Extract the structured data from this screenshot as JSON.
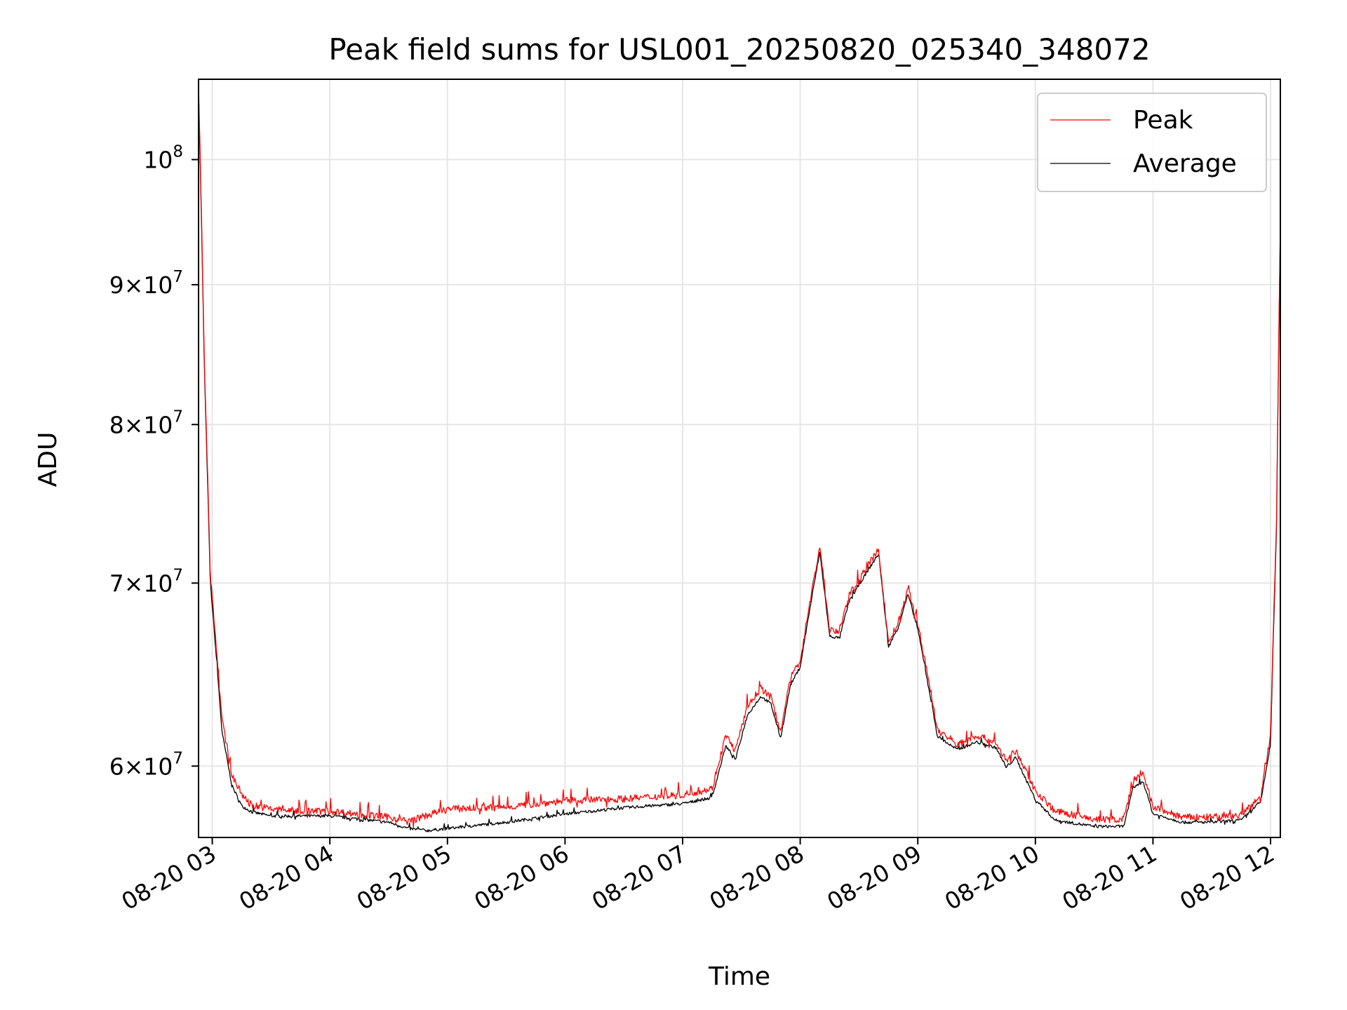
{
  "chart_data": {
    "type": "line",
    "title": "Peak field sums for USL001_20250820_025340_348072",
    "xlabel": "Time",
    "ylabel": "ADU",
    "y_scale": "log",
    "ylim": [
      56500000,
      107000000
    ],
    "x_range": [
      "08-20 02:53",
      "08-20 12:05"
    ],
    "x_ticks": [
      "08-20 03",
      "08-20 04",
      "08-20 05",
      "08-20 06",
      "08-20 07",
      "08-20 08",
      "08-20 09",
      "08-20 10",
      "08-20 11",
      "08-20 12"
    ],
    "y_ticks": [
      {
        "value": 60000000,
        "mantissa": "6",
        "exponent": "7"
      },
      {
        "value": 70000000,
        "mantissa": "7",
        "exponent": "7"
      },
      {
        "value": 80000000,
        "mantissa": "8",
        "exponent": "7"
      },
      {
        "value": 90000000,
        "mantissa": "9",
        "exponent": "7"
      },
      {
        "value": 100000000,
        "mantissa": "",
        "exponent": "8"
      }
    ],
    "grid": true,
    "legend_position": "top-right",
    "colors": {
      "peak": "#ff0000",
      "average": "#000000",
      "grid": "#e6e6e6"
    },
    "series": [
      {
        "name": "Peak",
        "key": "peak",
        "x": [
          "08-20 02:53",
          "08-20 02:56",
          "08-20 02:59",
          "08-20 03:05",
          "08-20 03:10",
          "08-20 03:15",
          "08-20 03:20",
          "08-20 03:30",
          "08-20 03:45",
          "08-20 04:00",
          "08-20 04:30",
          "08-20 04:40",
          "08-20 04:50",
          "08-20 05:00",
          "08-20 05:30",
          "08-20 06:00",
          "08-20 06:30",
          "08-20 07:00",
          "08-20 07:15",
          "08-20 07:22",
          "08-20 07:27",
          "08-20 07:33",
          "08-20 07:40",
          "08-20 07:45",
          "08-20 07:50",
          "08-20 07:55",
          "08-20 08:00",
          "08-20 08:05",
          "08-20 08:10",
          "08-20 08:15",
          "08-20 08:20",
          "08-20 08:25",
          "08-20 08:35",
          "08-20 08:40",
          "08-20 08:45",
          "08-20 08:50",
          "08-20 08:55",
          "08-20 09:00",
          "08-20 09:10",
          "08-20 09:20",
          "08-20 09:30",
          "08-20 09:40",
          "08-20 09:45",
          "08-20 09:50",
          "08-20 10:00",
          "08-20 10:10",
          "08-20 10:30",
          "08-20 10:45",
          "08-20 10:50",
          "08-20 10:55",
          "08-20 11:00",
          "08-20 11:15",
          "08-20 11:30",
          "08-20 11:45",
          "08-20 11:55",
          "08-20 12:00",
          "08-20 12:03",
          "08-20 12:05"
        ],
        "y": [
          106500000,
          84000000,
          70500000,
          62300000,
          59500000,
          58500000,
          58000000,
          57800000,
          57700000,
          57700000,
          57400000,
          57200000,
          57500000,
          57800000,
          57900000,
          58200000,
          58300000,
          58500000,
          58800000,
          61500000,
          60700000,
          63000000,
          64000000,
          63500000,
          61700000,
          64500000,
          65500000,
          68800000,
          72100000,
          67200000,
          67100000,
          69200000,
          71000000,
          71900000,
          66500000,
          67600000,
          69500000,
          67600000,
          61800000,
          61000000,
          61500000,
          61100000,
          60200000,
          60700000,
          58700000,
          57700000,
          57300000,
          57300000,
          59200000,
          59500000,
          57900000,
          57400000,
          57400000,
          57500000,
          58400000,
          61500000,
          73500000,
          94500000
        ]
      },
      {
        "name": "Average",
        "key": "average",
        "x": [
          "08-20 02:53",
          "08-20 02:56",
          "08-20 02:59",
          "08-20 03:05",
          "08-20 03:10",
          "08-20 03:15",
          "08-20 03:20",
          "08-20 03:30",
          "08-20 03:45",
          "08-20 04:00",
          "08-20 04:30",
          "08-20 04:40",
          "08-20 04:50",
          "08-20 05:00",
          "08-20 05:30",
          "08-20 06:00",
          "08-20 06:30",
          "08-20 07:00",
          "08-20 07:15",
          "08-20 07:22",
          "08-20 07:27",
          "08-20 07:33",
          "08-20 07:40",
          "08-20 07:45",
          "08-20 07:50",
          "08-20 07:55",
          "08-20 08:00",
          "08-20 08:05",
          "08-20 08:10",
          "08-20 08:15",
          "08-20 08:20",
          "08-20 08:25",
          "08-20 08:35",
          "08-20 08:40",
          "08-20 08:45",
          "08-20 08:50",
          "08-20 08:55",
          "08-20 09:00",
          "08-20 09:10",
          "08-20 09:20",
          "08-20 09:30",
          "08-20 09:40",
          "08-20 09:45",
          "08-20 09:50",
          "08-20 10:00",
          "08-20 10:10",
          "08-20 10:30",
          "08-20 10:45",
          "08-20 10:50",
          "08-20 10:55",
          "08-20 11:00",
          "08-20 11:15",
          "08-20 11:30",
          "08-20 11:45",
          "08-20 11:55",
          "08-20 12:00",
          "08-20 12:03",
          "08-20 12:05"
        ],
        "y": [
          106000000,
          83500000,
          70000000,
          61700000,
          59000000,
          58000000,
          57700000,
          57500000,
          57500000,
          57500000,
          57200000,
          56900000,
          56800000,
          56900000,
          57200000,
          57600000,
          57900000,
          58100000,
          58400000,
          61000000,
          60300000,
          62600000,
          63600000,
          63200000,
          61400000,
          64200000,
          65200000,
          68500000,
          71800000,
          66900000,
          66800000,
          68900000,
          70800000,
          71700000,
          66300000,
          67400000,
          69300000,
          67300000,
          61500000,
          60800000,
          61200000,
          60900000,
          59900000,
          60400000,
          58300000,
          57300000,
          57000000,
          57000000,
          58900000,
          59200000,
          57600000,
          57200000,
          57200000,
          57300000,
          58200000,
          61100000,
          73000000,
          94000000
        ]
      }
    ]
  }
}
